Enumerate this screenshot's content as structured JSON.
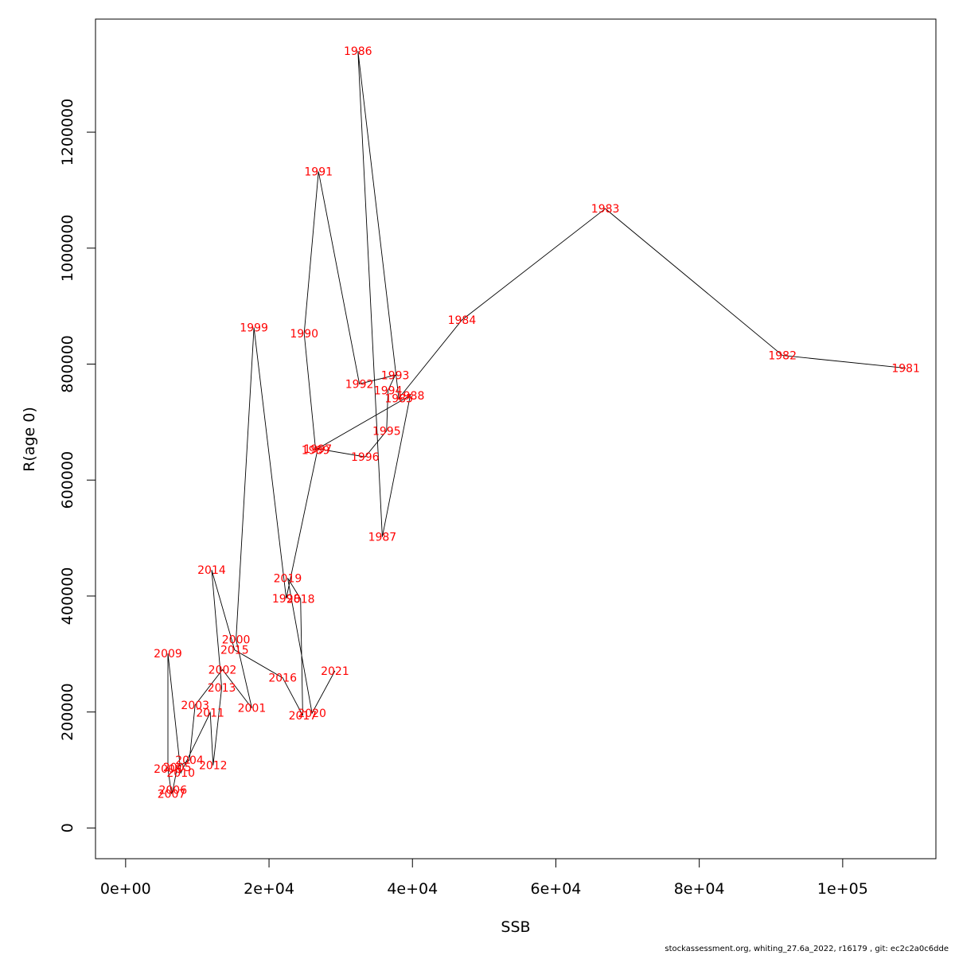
{
  "chart_data": {
    "type": "scatter",
    "connected": true,
    "title": "",
    "xlabel": "SSB",
    "ylabel": "R(age 0)",
    "xlim": [
      -4200,
      113000
    ],
    "ylim": [
      -53000,
      1395000
    ],
    "x_ticks": [
      0,
      20000,
      40000,
      60000,
      80000,
      100000
    ],
    "x_tick_labels": [
      "0e+00",
      "2e+04",
      "4e+04",
      "6e+04",
      "8e+04",
      "1e+05"
    ],
    "y_ticks": [
      0,
      200000,
      400000,
      600000,
      800000,
      1000000,
      1200000
    ],
    "y_tick_labels": [
      "0",
      "200000",
      "400000",
      "600000",
      "800000",
      "1000000",
      "1200000"
    ],
    "grid": false,
    "line_color": "#000000",
    "label_color": "#ff0000",
    "points": [
      {
        "year": "1981",
        "x": 108800,
        "y": 793000
      },
      {
        "year": "1982",
        "x": 91600,
        "y": 815000
      },
      {
        "year": "1983",
        "x": 66900,
        "y": 1068000
      },
      {
        "year": "1984",
        "x": 46900,
        "y": 876000
      },
      {
        "year": "1985",
        "x": 38100,
        "y": 741000
      },
      {
        "year": "1986",
        "x": 32400,
        "y": 1340000
      },
      {
        "year": "1987",
        "x": 35800,
        "y": 502000
      },
      {
        "year": "1988",
        "x": 39700,
        "y": 746000
      },
      {
        "year": "1989",
        "x": 26500,
        "y": 652000
      },
      {
        "year": "1990",
        "x": 24900,
        "y": 853000
      },
      {
        "year": "1991",
        "x": 26900,
        "y": 1132000
      },
      {
        "year": "1992",
        "x": 32600,
        "y": 766000
      },
      {
        "year": "1993",
        "x": 37600,
        "y": 781000
      },
      {
        "year": "1994",
        "x": 36600,
        "y": 755000
      },
      {
        "year": "1995",
        "x": 36400,
        "y": 685000
      },
      {
        "year": "1996",
        "x": 33400,
        "y": 640000
      },
      {
        "year": "1997",
        "x": 26800,
        "y": 654000
      },
      {
        "year": "1998",
        "x": 22400,
        "y": 396000
      },
      {
        "year": "1999",
        "x": 17900,
        "y": 863000
      },
      {
        "year": "2000",
        "x": 15400,
        "y": 325000
      },
      {
        "year": "2001",
        "x": 17600,
        "y": 207000
      },
      {
        "year": "2002",
        "x": 13500,
        "y": 273000
      },
      {
        "year": "2003",
        "x": 9700,
        "y": 212000
      },
      {
        "year": "2004",
        "x": 8900,
        "y": 117000
      },
      {
        "year": "2005",
        "x": 7200,
        "y": 105000
      },
      {
        "year": "2006",
        "x": 6600,
        "y": 66000
      },
      {
        "year": "2007",
        "x": 6400,
        "y": 59000
      },
      {
        "year": "2008",
        "x": 5900,
        "y": 102000
      },
      {
        "year": "2009",
        "x": 5900,
        "y": 301000
      },
      {
        "year": "2010",
        "x": 7700,
        "y": 95000
      },
      {
        "year": "2011",
        "x": 11800,
        "y": 199000
      },
      {
        "year": "2012",
        "x": 12200,
        "y": 108000
      },
      {
        "year": "2013",
        "x": 13400,
        "y": 242000
      },
      {
        "year": "2014",
        "x": 12000,
        "y": 445000
      },
      {
        "year": "2015",
        "x": 15200,
        "y": 307000
      },
      {
        "year": "2016",
        "x": 21900,
        "y": 259000
      },
      {
        "year": "2017",
        "x": 24700,
        "y": 194000
      },
      {
        "year": "2018",
        "x": 24400,
        "y": 395000
      },
      {
        "year": "2019",
        "x": 22600,
        "y": 431000
      },
      {
        "year": "2020",
        "x": 26000,
        "y": 198000
      },
      {
        "year": "2021",
        "x": 29200,
        "y": 271000
      }
    ]
  },
  "footer": {
    "text": "stockassessment.org, whiting_27.6a_2022, r16179 , git: ec2c2a0c6dde"
  }
}
